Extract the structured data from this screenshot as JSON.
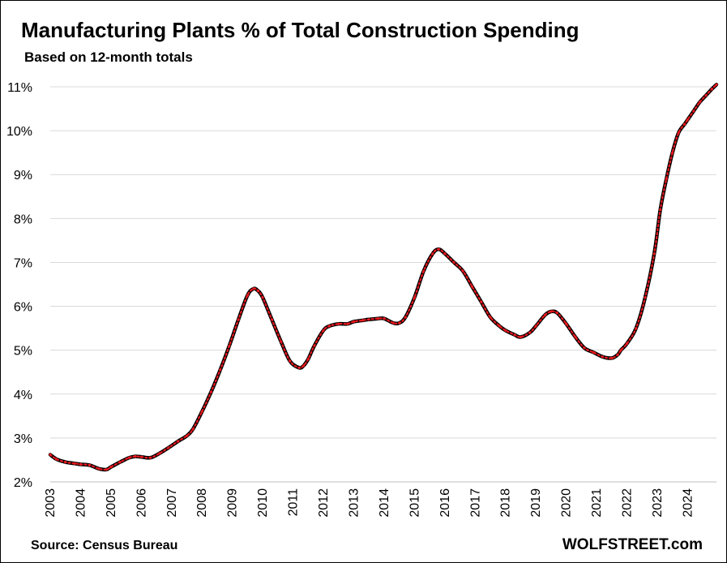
{
  "header": {
    "title": "Manufacturing Plants % of Total Construction Spending",
    "subtitle": "Based on 12-month totals"
  },
  "footer": {
    "source": "Source: Census Bureau",
    "brand": "WOLFSTREET.com"
  },
  "colors": {
    "line": "#000000",
    "dots": "#e8191e",
    "grid": "#d9d9d9"
  },
  "chart_data": {
    "type": "line",
    "title": "Manufacturing Plants % of Total Construction Spending",
    "subtitle": "Based on 12-month totals",
    "xlabel": "",
    "ylabel": "",
    "xlim": [
      2003.0,
      2024.95
    ],
    "ylim": [
      2,
      11
    ],
    "grid": true,
    "legend": "none",
    "x_ticks": [
      "2003",
      "2004",
      "2005",
      "2006",
      "2007",
      "2008",
      "2009",
      "2010",
      "2011",
      "2012",
      "2013",
      "2014",
      "2015",
      "2016",
      "2017",
      "2018",
      "2019",
      "2020",
      "2021",
      "2022",
      "2023",
      "2024"
    ],
    "y_ticks": [
      "2%",
      "3%",
      "4%",
      "5%",
      "6%",
      "7%",
      "8%",
      "9%",
      "10%",
      "11%"
    ],
    "series": [
      {
        "x": [
          2003.0,
          2003.2,
          2003.5,
          2003.8,
          2004.0,
          2004.3,
          2004.6,
          2004.85,
          2005.0,
          2005.3,
          2005.6,
          2005.8,
          2006.0,
          2006.3,
          2006.6,
          2006.9,
          2007.2,
          2007.5,
          2007.7,
          2008.0,
          2008.3,
          2008.6,
          2008.9,
          2009.2,
          2009.5,
          2009.7,
          2009.85,
          2010.0,
          2010.3,
          2010.6,
          2010.9,
          2011.2,
          2011.35,
          2011.5,
          2011.7,
          2012.0,
          2012.2,
          2012.5,
          2012.8,
          2013.0,
          2013.3,
          2013.5,
          2013.8,
          2014.0,
          2014.3,
          2014.5,
          2014.7,
          2015.0,
          2015.3,
          2015.6,
          2015.8,
          2016.0,
          2016.3,
          2016.6,
          2016.9,
          2017.2,
          2017.5,
          2017.8,
          2018.0,
          2018.3,
          2018.5,
          2018.8,
          2019.0,
          2019.3,
          2019.5,
          2019.7,
          2020.0,
          2020.3,
          2020.6,
          2020.9,
          2021.2,
          2021.5,
          2021.7,
          2021.8,
          2022.0,
          2022.3,
          2022.6,
          2022.9,
          2023.1,
          2023.3,
          2023.5,
          2023.7,
          2023.9,
          2024.0,
          2024.2,
          2024.4,
          2024.6,
          2024.8,
          2024.95
        ],
        "y": [
          2.62,
          2.52,
          2.45,
          2.42,
          2.4,
          2.38,
          2.3,
          2.28,
          2.34,
          2.45,
          2.55,
          2.58,
          2.57,
          2.55,
          2.65,
          2.78,
          2.92,
          3.05,
          3.2,
          3.6,
          4.05,
          4.55,
          5.1,
          5.7,
          6.25,
          6.4,
          6.35,
          6.2,
          5.7,
          5.2,
          4.75,
          4.6,
          4.65,
          4.8,
          5.1,
          5.45,
          5.55,
          5.6,
          5.6,
          5.65,
          5.68,
          5.7,
          5.72,
          5.72,
          5.62,
          5.62,
          5.75,
          6.2,
          6.8,
          7.2,
          7.3,
          7.2,
          7.0,
          6.8,
          6.45,
          6.1,
          5.75,
          5.55,
          5.45,
          5.35,
          5.3,
          5.4,
          5.55,
          5.8,
          5.88,
          5.85,
          5.6,
          5.3,
          5.05,
          4.95,
          4.85,
          4.82,
          4.9,
          5.0,
          5.15,
          5.5,
          6.2,
          7.2,
          8.2,
          8.9,
          9.5,
          9.95,
          10.15,
          10.25,
          10.45,
          10.65,
          10.8,
          10.95,
          11.05
        ]
      }
    ]
  }
}
